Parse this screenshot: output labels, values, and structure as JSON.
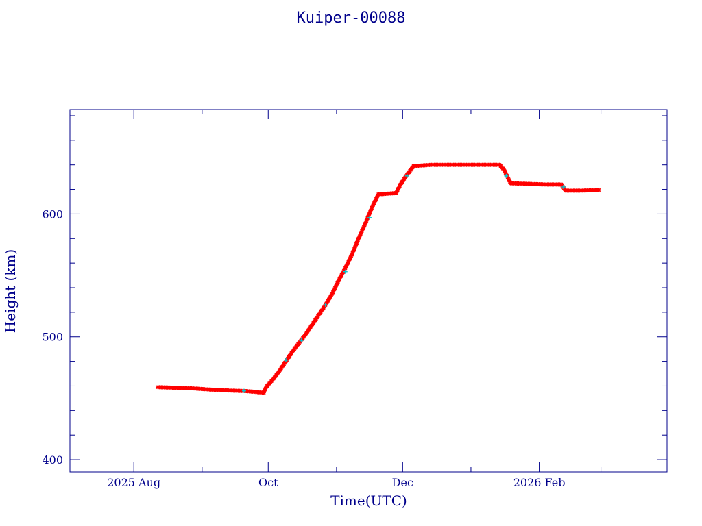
{
  "chart_data": {
    "type": "scatter",
    "title": "Kuiper-00088",
    "xlabel": "Time(UTC)",
    "ylabel": "Height (km)",
    "x_tick_labels": [
      {
        "date": "2025-08-01",
        "label": "2025 Aug"
      },
      {
        "date": "2025-10-01",
        "label": "Oct"
      },
      {
        "date": "2025-12-01",
        "label": "Dec"
      },
      {
        "date": "2026-02-01",
        "label": "2026 Feb"
      }
    ],
    "y_ticks": [
      400,
      500,
      600
    ],
    "xlim": [
      "2025-07-03",
      "2026-03-31"
    ],
    "ylim": [
      390,
      685
    ],
    "grid": false,
    "colors": {
      "axis": "#00008b",
      "series_primary": "#ff0000",
      "series_secondary": "#00c8d2"
    },
    "series": [
      {
        "color": "#ff0000",
        "marker": "star",
        "points": [
          [
            "2025-08-12",
            459.0
          ],
          [
            "2025-08-20",
            458.5
          ],
          [
            "2025-08-28",
            458.0
          ],
          [
            "2025-09-05",
            457.0
          ],
          [
            "2025-09-13",
            456.3
          ],
          [
            "2025-09-21",
            455.8
          ],
          [
            "2025-09-29",
            454.5
          ],
          [
            "2025-09-30",
            459.0
          ],
          [
            "2025-10-03",
            465.0
          ],
          [
            "2025-10-06",
            472.0
          ],
          [
            "2025-10-09",
            480.0
          ],
          [
            "2025-10-12",
            488.0
          ],
          [
            "2025-10-15",
            495.0
          ],
          [
            "2025-10-18",
            502.0
          ],
          [
            "2025-10-21",
            510.0
          ],
          [
            "2025-10-24",
            518.0
          ],
          [
            "2025-10-27",
            526.0
          ],
          [
            "2025-10-30",
            535.0
          ],
          [
            "2025-11-02",
            546.0
          ],
          [
            "2025-11-05",
            556.0
          ],
          [
            "2025-11-08",
            567.0
          ],
          [
            "2025-11-11",
            580.0
          ],
          [
            "2025-11-14",
            592.0
          ],
          [
            "2025-11-17",
            605.0
          ],
          [
            "2025-11-20",
            616.0
          ],
          [
            "2025-11-24",
            616.5
          ],
          [
            "2025-11-28",
            617.0
          ],
          [
            "2025-11-30",
            624.0
          ],
          [
            "2025-12-03",
            632.0
          ],
          [
            "2025-12-06",
            639.0
          ],
          [
            "2025-12-14",
            640.0
          ],
          [
            "2025-12-22",
            640.0
          ],
          [
            "2025-12-30",
            640.0
          ],
          [
            "2026-01-07",
            640.0
          ],
          [
            "2026-01-14",
            640.0
          ],
          [
            "2026-01-16",
            636.0
          ],
          [
            "2026-01-19",
            625.0
          ],
          [
            "2026-01-27",
            624.5
          ],
          [
            "2026-02-04",
            624.0
          ],
          [
            "2026-02-11",
            624.0
          ],
          [
            "2026-02-13",
            619.0
          ],
          [
            "2026-02-20",
            619.0
          ],
          [
            "2026-02-28",
            619.5
          ]
        ]
      },
      {
        "color": "#00c8d2",
        "marker": "plus",
        "points": [
          [
            "2025-09-20",
            456.0
          ],
          [
            "2025-10-09",
            481.0
          ],
          [
            "2025-10-16",
            497.0
          ],
          [
            "2025-10-27",
            526.0
          ],
          [
            "2025-11-05",
            553.0
          ],
          [
            "2025-11-16",
            597.0
          ],
          [
            "2025-12-03",
            631.0
          ],
          [
            "2026-01-17",
            631.0
          ],
          [
            "2026-02-12",
            622.0
          ]
        ]
      }
    ]
  }
}
